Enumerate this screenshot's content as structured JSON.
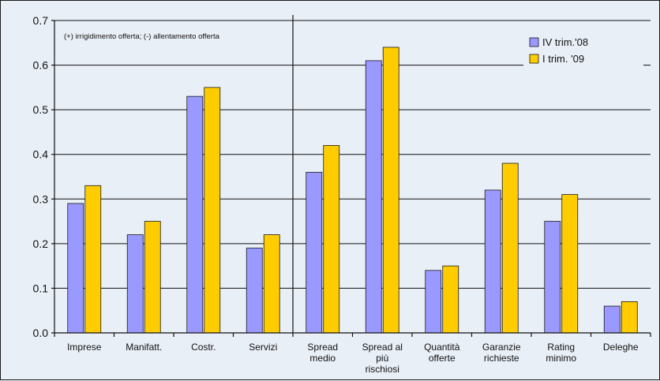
{
  "chart_data": {
    "type": "bar",
    "title": "",
    "xlabel": "",
    "ylabel": "",
    "annotation": "(+) irrigidimento offerta; (-) allentamento offerta",
    "categories": [
      [
        "Imprese"
      ],
      [
        "Manifatt."
      ],
      [
        "Costr."
      ],
      [
        "Servizi"
      ],
      [
        "Spread",
        "medio"
      ],
      [
        "Spread al",
        "più",
        "rischiosi"
      ],
      [
        "Quantità",
        "offerte"
      ],
      [
        "Garanzie",
        "richieste"
      ],
      [
        "Rating",
        "minimo"
      ],
      [
        "Deleghe"
      ]
    ],
    "series": [
      {
        "name": "IV trim.'08",
        "color": "#9999ff",
        "values": [
          0.29,
          0.22,
          0.53,
          0.19,
          0.36,
          0.61,
          0.14,
          0.32,
          0.25,
          0.06
        ]
      },
      {
        "name": "I trim. '09",
        "color": "#ffcc00",
        "values": [
          0.33,
          0.25,
          0.55,
          0.22,
          0.42,
          0.64,
          0.15,
          0.38,
          0.31,
          0.07
        ]
      }
    ],
    "ylim": [
      0.0,
      0.7
    ],
    "yticks": [
      "0.0",
      "0.1",
      "0.2",
      "0.3",
      "0.4",
      "0.5",
      "0.6",
      "0.7"
    ],
    "grid": true,
    "legend_position": "top-right",
    "divider_after_category": 4
  }
}
